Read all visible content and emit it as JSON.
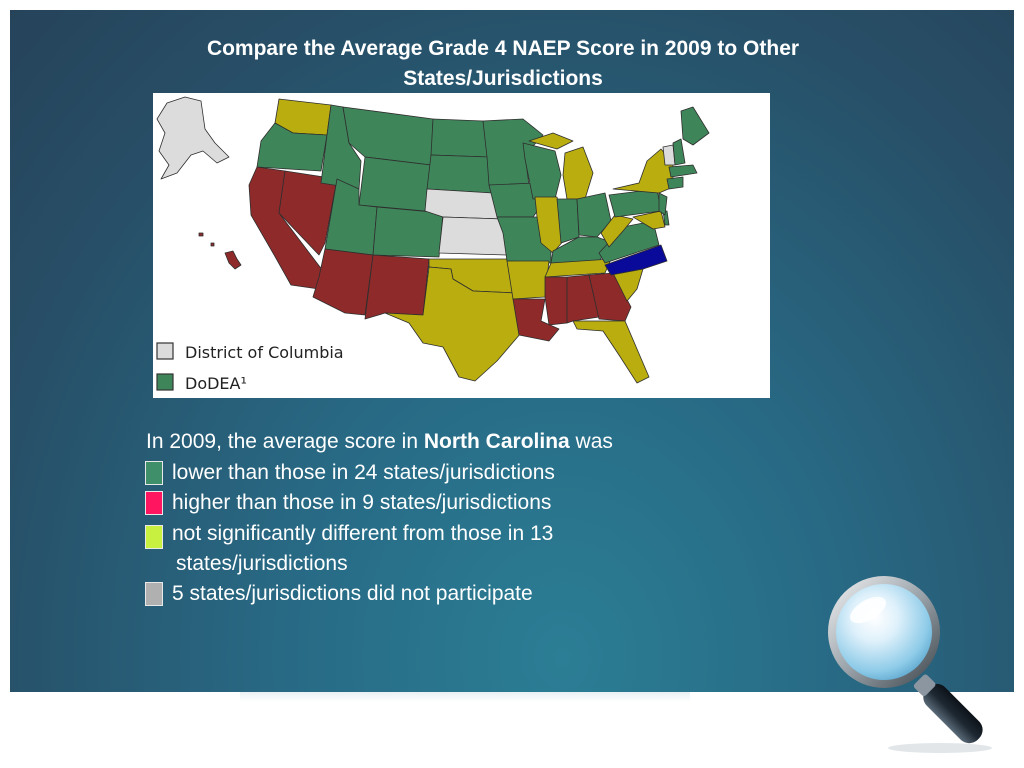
{
  "slide": {
    "title_line1": "Compare the Average Grade 4 NAEP Score in 2009 to Other",
    "title_line2": "States/Jurisdictions"
  },
  "colors": {
    "lower": "#3f855a",
    "higher": "#8f2a2a",
    "not_significant": "#b9ad10",
    "not_participating": "#dcdcdc",
    "focal_state": "#0a0a9a",
    "legend_swatch_lower": "#3f8f6a",
    "legend_swatch_higher": "#ff1560",
    "legend_swatch_ns": "#c8f040",
    "legend_swatch_np": "#b0b0b0"
  },
  "map": {
    "legend": [
      {
        "label": "District of Columbia",
        "color_key": "not_participating"
      },
      {
        "label": "DoDEA¹",
        "color_key": "lower"
      }
    ]
  },
  "summary": {
    "intro_before": "In 2009, the average score in ",
    "state": "North Carolina",
    "intro_after": " was",
    "rows": [
      {
        "text": "lower than those in 24 states/jurisdictions",
        "color_key": "legend_swatch_lower"
      },
      {
        "text": "higher than those in 9 states/jurisdictions",
        "color_key": "legend_swatch_higher"
      },
      {
        "text": "not significantly different from those in 13",
        "continuation": "states/jurisdictions",
        "color_key": "legend_swatch_ns"
      },
      {
        "text": "5 states/jurisdictions did not participate",
        "color_key": "legend_swatch_np"
      }
    ]
  },
  "icons": {
    "magnifier": "magnifying-glass-icon"
  }
}
